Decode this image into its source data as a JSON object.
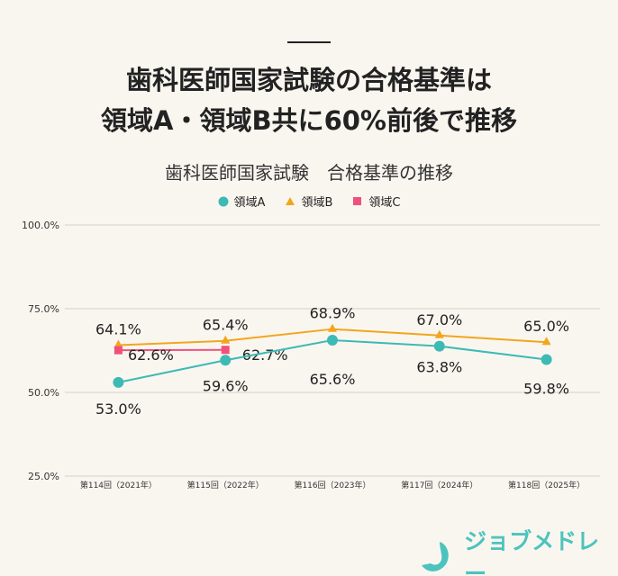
{
  "headline": [
    "歯科医師国家試験の合格基準は",
    "領域A・領域B共に60%前後で推移"
  ],
  "logo_text": "ジョブメドレー",
  "chart_data": {
    "type": "line",
    "title": "歯科医師国家試験　合格基準の推移",
    "categories": [
      "第114回（2021年）",
      "第115回（2022年）",
      "第116回（2023年）",
      "第117回（2024年）",
      "第118回（2025年）"
    ],
    "ylim": [
      25,
      100
    ],
    "yticks": [
      "25.0%",
      "50.0%",
      "75.0%",
      "100.0%"
    ],
    "ytick_values": [
      25,
      50,
      75,
      100
    ],
    "grid": true,
    "legend": "top",
    "series": [
      {
        "name": "領域A",
        "values": [
          53.0,
          59.6,
          65.6,
          63.8,
          59.8
        ],
        "labels": [
          "53.0%",
          "59.6%",
          "65.6%",
          "63.8%",
          "59.8%"
        ],
        "color": "#3dbab3",
        "marker": "circle"
      },
      {
        "name": "領域B",
        "values": [
          64.1,
          65.4,
          68.9,
          67.0,
          65.0
        ],
        "labels": [
          "64.1%",
          "65.4%",
          "68.9%",
          "67.0%",
          "65.0%"
        ],
        "color": "#f2a61b",
        "marker": "triangle"
      },
      {
        "name": "領域C",
        "values": [
          62.6,
          62.7,
          null,
          null,
          null
        ],
        "labels": [
          "62.6%",
          "62.7%",
          null,
          null,
          null
        ],
        "color": "#f0517a",
        "marker": "square"
      }
    ]
  }
}
